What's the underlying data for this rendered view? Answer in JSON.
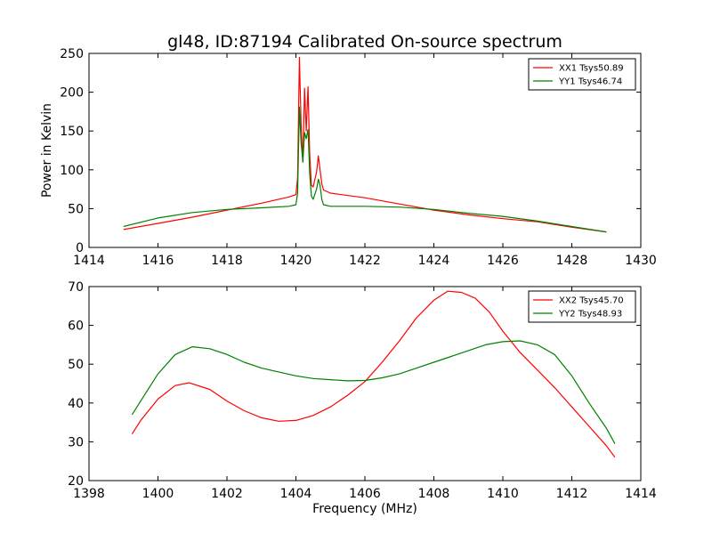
{
  "figure": {
    "title": "gl48, ID:87194 Calibrated On-source spectrum"
  },
  "colors": {
    "xx": "#ff0000",
    "yy": "#008000"
  },
  "chart_data": [
    {
      "type": "line",
      "title": "gl48, ID:87194 Calibrated On-source spectrum",
      "xlabel": "",
      "ylabel": "Power in Kelvin",
      "xlim": [
        1414,
        1430
      ],
      "ylim": [
        0,
        250
      ],
      "xticks": [
        1414,
        1416,
        1418,
        1420,
        1422,
        1424,
        1426,
        1428,
        1430
      ],
      "yticks": [
        0,
        50,
        100,
        150,
        200,
        250
      ],
      "grid": false,
      "legend_position": "top-right",
      "series": [
        {
          "name": "XX1 Tsys50.89",
          "color": "#ff0000",
          "x": [
            1415.0,
            1416.0,
            1417.0,
            1418.0,
            1419.0,
            1419.8,
            1420.0,
            1420.05,
            1420.1,
            1420.15,
            1420.2,
            1420.25,
            1420.3,
            1420.35,
            1420.4,
            1420.45,
            1420.5,
            1420.6,
            1420.65,
            1420.7,
            1420.75,
            1420.8,
            1421.0,
            1422.0,
            1423.0,
            1424.0,
            1425.0,
            1426.0,
            1427.0,
            1428.0,
            1429.0
          ],
          "values": [
            23,
            31,
            39,
            48,
            57,
            65,
            68,
            90,
            245,
            160,
            110,
            205,
            150,
            207,
            120,
            80,
            78,
            97,
            118,
            100,
            82,
            74,
            70,
            64,
            56,
            48,
            42,
            37,
            33,
            26,
            20
          ]
        },
        {
          "name": "YY1 Tsys46.74",
          "color": "#008000",
          "x": [
            1415.0,
            1416.0,
            1417.0,
            1418.0,
            1419.0,
            1419.8,
            1420.0,
            1420.05,
            1420.1,
            1420.15,
            1420.2,
            1420.25,
            1420.3,
            1420.35,
            1420.4,
            1420.45,
            1420.5,
            1420.6,
            1420.65,
            1420.7,
            1420.75,
            1420.8,
            1421.0,
            1422.0,
            1423.0,
            1424.0,
            1425.0,
            1426.0,
            1427.0,
            1428.0,
            1429.0
          ],
          "values": [
            27,
            38,
            45,
            49,
            51,
            53,
            55,
            70,
            181,
            135,
            110,
            148,
            140,
            152,
            95,
            66,
            62,
            75,
            88,
            80,
            62,
            55,
            53,
            53,
            52,
            49,
            44,
            40,
            34,
            27,
            20
          ]
        }
      ]
    },
    {
      "type": "line",
      "title": "",
      "xlabel": "Frequency (MHz)",
      "ylabel": "",
      "xlim": [
        1398,
        1414
      ],
      "ylim": [
        20,
        70
      ],
      "xticks": [
        1398,
        1400,
        1402,
        1404,
        1406,
        1408,
        1410,
        1412,
        1414
      ],
      "yticks": [
        20,
        30,
        40,
        50,
        60,
        70
      ],
      "grid": false,
      "legend_position": "top-right",
      "series": [
        {
          "name": "XX2 Tsys45.70",
          "color": "#ff0000",
          "x": [
            1399.25,
            1399.5,
            1400.0,
            1400.5,
            1400.9,
            1401.5,
            1402.0,
            1402.5,
            1403.0,
            1403.5,
            1404.0,
            1404.5,
            1405.0,
            1405.5,
            1406.0,
            1406.5,
            1407.0,
            1407.5,
            1408.0,
            1408.4,
            1408.8,
            1409.2,
            1409.6,
            1410.0,
            1410.5,
            1411.0,
            1411.5,
            1412.0,
            1412.5,
            1413.0,
            1413.25
          ],
          "values": [
            32,
            35.5,
            41,
            44.5,
            45.2,
            43.5,
            40.5,
            38,
            36.2,
            35.3,
            35.5,
            36.8,
            39,
            42,
            45.5,
            50.5,
            56,
            62,
            66.5,
            68.8,
            68.5,
            67,
            63.5,
            58.5,
            53,
            48.5,
            44,
            39,
            34,
            29,
            26
          ]
        },
        {
          "name": "YY2 Tsys48.93",
          "color": "#008000",
          "x": [
            1399.25,
            1399.5,
            1400.0,
            1400.5,
            1401.0,
            1401.5,
            1402.0,
            1402.5,
            1403.0,
            1403.5,
            1404.0,
            1404.5,
            1405.0,
            1405.5,
            1406.0,
            1406.5,
            1407.0,
            1407.5,
            1408.0,
            1408.5,
            1409.0,
            1409.5,
            1410.0,
            1410.5,
            1411.0,
            1411.5,
            1412.0,
            1412.5,
            1413.0,
            1413.25
          ],
          "values": [
            37,
            40.5,
            47.5,
            52.5,
            54.5,
            54,
            52.5,
            50.5,
            49,
            48,
            47,
            46.3,
            46,
            45.7,
            45.8,
            46.5,
            47.5,
            49,
            50.5,
            52,
            53.5,
            55,
            55.8,
            56,
            55,
            52.5,
            47,
            40,
            33.5,
            29.5
          ]
        }
      ]
    }
  ]
}
